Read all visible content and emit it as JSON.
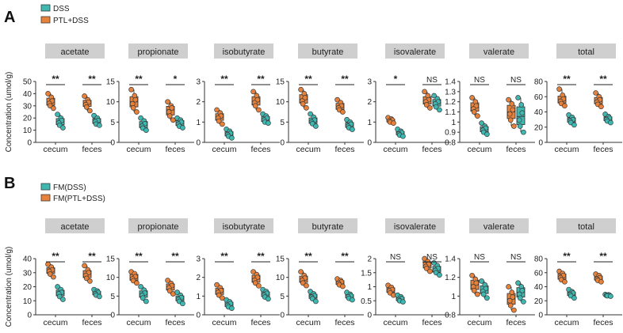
{
  "colors": {
    "dss": "#3fb8b1",
    "ptl": "#e8823a",
    "stroke": "#3a3a3a",
    "title_bg": "#cfcfcf"
  },
  "chart_data": [
    {
      "panel": "A",
      "type": "box-dot",
      "legend": [
        {
          "label": "DSS",
          "color": "#3fb8b1"
        },
        {
          "label": "PTL+DSS",
          "color": "#e8823a"
        }
      ],
      "ylabel": "Concentration (umol/g)",
      "xlabels": [
        "cecum",
        "feces"
      ],
      "subplots": [
        {
          "title": "acetate",
          "ylim": [
            0,
            50
          ],
          "ticks": [
            0,
            10,
            20,
            30,
            40,
            50
          ],
          "sig": [
            "**",
            "**"
          ],
          "series": {
            "ptl": [
              [
                40,
                37,
                34,
                32,
                30,
                28
              ],
              [
                38,
                35,
                33,
                31,
                29,
                26
              ]
            ],
            "dss": [
              [
                23,
                20,
                18,
                16,
                14,
                12
              ],
              [
                22,
                20,
                18,
                17,
                15,
                14
              ]
            ]
          }
        },
        {
          "title": "propionate",
          "ylim": [
            0,
            15
          ],
          "ticks": [
            0,
            5,
            10,
            15
          ],
          "sig": [
            "**",
            "*"
          ],
          "series": {
            "ptl": [
              [
                13,
                11.5,
                10.5,
                9.5,
                8.5,
                7.5
              ],
              [
                10,
                9,
                8.5,
                7.5,
                6.5,
                5.5
              ]
            ],
            "dss": [
              [
                6,
                5.3,
                4.6,
                4,
                3.5,
                3
              ],
              [
                6,
                5.5,
                5,
                4.5,
                4,
                3.6
              ]
            ]
          }
        },
        {
          "title": "isobutyrate",
          "ylim": [
            0,
            3
          ],
          "ticks": [
            0,
            1,
            2,
            3
          ],
          "sig": [
            "**",
            "**"
          ],
          "series": {
            "ptl": [
              [
                1.6,
                1.45,
                1.3,
                1.2,
                1.05,
                0.9
              ],
              [
                2.5,
                2.3,
                2.1,
                1.95,
                1.8,
                1.6
              ]
            ],
            "dss": [
              [
                0.65,
                0.55,
                0.45,
                0.38,
                0.3,
                0.22
              ],
              [
                1.4,
                1.3,
                1.2,
                1.1,
                1.0,
                0.95
              ]
            ]
          }
        },
        {
          "title": "butyrate",
          "ylim": [
            0,
            15
          ],
          "ticks": [
            0,
            5,
            10,
            15
          ],
          "sig": [
            "**",
            "**"
          ],
          "series": {
            "ptl": [
              [
                13,
                12,
                11,
                10.2,
                9.5,
                8.5
              ],
              [
                10.5,
                9.8,
                9,
                8.5,
                8,
                7.5
              ]
            ],
            "dss": [
              [
                7,
                6.2,
                5.5,
                5,
                4.6,
                4
              ],
              [
                5.6,
                5,
                4.5,
                4,
                3.6,
                3.2
              ]
            ]
          }
        },
        {
          "title": "isovalerate",
          "ylim": [
            0,
            3
          ],
          "ticks": [
            0,
            1,
            2,
            3
          ],
          "sig": [
            "*",
            "NS"
          ],
          "series": {
            "ptl": [
              [
                1.22,
                1.15,
                1.1,
                1.05,
                1.0,
                0.95
              ],
              [
                2.5,
                2.3,
                2.1,
                2.0,
                1.85,
                1.7
              ]
            ],
            "dss": [
              [
                0.65,
                0.55,
                0.48,
                0.42,
                0.36,
                0.3
              ],
              [
                2.3,
                2.15,
                2.0,
                1.9,
                1.75,
                1.6
              ]
            ]
          }
        },
        {
          "title": "valerate",
          "ylim": [
            0.8,
            1.4
          ],
          "ticks": [
            0.8,
            0.9,
            1.0,
            1.1,
            1.2,
            1.3,
            1.4
          ],
          "sig": [
            "NS",
            "NS"
          ],
          "series": {
            "ptl": [
              [
                1.24,
                1.2,
                1.16,
                1.13,
                1.1,
                1.06
              ],
              [
                1.22,
                1.18,
                1.12,
                1.08,
                1.02,
                0.96
              ]
            ],
            "dss": [
              [
                0.99,
                0.96,
                0.94,
                0.92,
                0.9,
                0.88
              ],
              [
                1.24,
                1.17,
                1.09,
                1.02,
                0.96,
                0.9
              ]
            ]
          }
        },
        {
          "title": "total",
          "ylim": [
            0,
            80
          ],
          "ticks": [
            0,
            20,
            40,
            60,
            80
          ],
          "sig": [
            "**",
            "**"
          ],
          "series": {
            "ptl": [
              [
                70,
                62,
                57,
                54,
                51,
                48
              ],
              [
                65,
                60,
                56,
                53,
                50,
                47
              ]
            ],
            "dss": [
              [
                36,
                33,
                30,
                28,
                26,
                23
              ],
              [
                37,
                34,
                32,
                30,
                28,
                26
              ]
            ]
          }
        }
      ]
    },
    {
      "panel": "B",
      "type": "box-dot",
      "legend": [
        {
          "label": "FM(DSS)",
          "color": "#3fb8b1"
        },
        {
          "label": "FM(PTL+DSS)",
          "color": "#e8823a"
        }
      ],
      "ylabel": "Concentration (umol/g)",
      "xlabels": [
        "cecum",
        "feces"
      ],
      "subplots": [
        {
          "title": "acetate",
          "ylim": [
            0,
            40
          ],
          "ticks": [
            0,
            10,
            20,
            30,
            40
          ],
          "sig": [
            "**",
            "**"
          ],
          "series": {
            "ptl": [
              [
                36,
                34,
                32,
                31,
                29,
                27
              ],
              [
                35,
                32,
                30,
                28,
                26,
                24
              ]
            ],
            "dss": [
              [
                20,
                18,
                16,
                15,
                13,
                11
              ],
              [
                18,
                17,
                16,
                15,
                14,
                13
              ]
            ]
          }
        },
        {
          "title": "propionate",
          "ylim": [
            0,
            15
          ],
          "ticks": [
            0,
            5,
            10,
            15
          ],
          "sig": [
            "**",
            "**"
          ],
          "series": {
            "ptl": [
              [
                11.5,
                11,
                10.2,
                9.6,
                9.1,
                8.5
              ],
              [
                9.2,
                8.4,
                7.8,
                7.2,
                6.4,
                5.6
              ]
            ],
            "dss": [
              [
                7.5,
                6.6,
                5.8,
                5.2,
                4.5,
                3.6
              ],
              [
                6,
                5.2,
                4.6,
                4.1,
                3.6,
                3
              ]
            ]
          }
        },
        {
          "title": "isobutyrate",
          "ylim": [
            0,
            3
          ],
          "ticks": [
            0,
            1,
            2,
            3
          ],
          "sig": [
            "**",
            "**"
          ],
          "series": {
            "ptl": [
              [
                1.6,
                1.45,
                1.3,
                1.2,
                1.05,
                0.9
              ],
              [
                2.3,
                2.15,
                2.0,
                1.85,
                1.7,
                1.55
              ]
            ],
            "dss": [
              [
                0.8,
                0.7,
                0.6,
                0.5,
                0.42,
                0.35
              ],
              [
                1.35,
                1.25,
                1.15,
                1.05,
                0.95,
                0.85
              ]
            ]
          }
        },
        {
          "title": "butyrate",
          "ylim": [
            0,
            15
          ],
          "ticks": [
            0,
            5,
            10,
            15
          ],
          "sig": [
            "**",
            "**"
          ],
          "series": {
            "ptl": [
              [
                11.5,
                10.5,
                9.8,
                9.2,
                8.5,
                7.8
              ],
              [
                9.6,
                9.2,
                8.8,
                8.4,
                8,
                7.6
              ]
            ],
            "dss": [
              [
                6.2,
                5.6,
                5.1,
                4.7,
                4.3,
                3.6
              ],
              [
                6,
                5.5,
                5.1,
                4.8,
                4.4,
                4
              ]
            ]
          }
        },
        {
          "title": "isovalerate",
          "ylim": [
            0,
            2
          ],
          "ticks": [
            0,
            0.5,
            1.0,
            1.5,
            2.0
          ],
          "sig": [
            "NS",
            "NS"
          ],
          "series": {
            "ptl": [
              [
                1.05,
                0.98,
                0.9,
                0.85,
                0.78,
                0.7
              ],
              [
                2.0,
                1.9,
                1.8,
                1.72,
                1.65,
                1.55
              ]
            ],
            "dss": [
              [
                0.7,
                0.64,
                0.58,
                0.54,
                0.5,
                0.46
              ],
              [
                1.85,
                1.75,
                1.65,
                1.58,
                1.5,
                1.42
              ]
            ]
          }
        },
        {
          "title": "valerate",
          "ylim": [
            0.8,
            1.4
          ],
          "ticks": [
            0.8,
            1.0,
            1.2,
            1.4
          ],
          "sig": [
            "NS",
            "NS"
          ],
          "series": {
            "ptl": [
              [
                1.22,
                1.18,
                1.14,
                1.1,
                1.06,
                1.02
              ],
              [
                1.1,
                1.04,
                0.99,
                0.95,
                0.9,
                0.85
              ]
            ],
            "dss": [
              [
                1.16,
                1.12,
                1.08,
                1.05,
                1.02,
                0.98
              ],
              [
                1.14,
                1.1,
                1.06,
                1.02,
                0.98,
                0.94
              ]
            ]
          }
        },
        {
          "title": "total",
          "ylim": [
            0,
            80
          ],
          "ticks": [
            0,
            20,
            40,
            60,
            80
          ],
          "sig": [
            "**",
            "**"
          ],
          "series": {
            "ptl": [
              [
                62,
                59,
                56,
                53,
                50,
                47
              ],
              [
                58,
                56,
                53,
                51,
                49,
                47
              ]
            ],
            "dss": [
              [
                36,
                33,
                31,
                29,
                27,
                24
              ],
              [
                29,
                28.5,
                28,
                27.5,
                27,
                26.5
              ]
            ]
          }
        }
      ]
    }
  ]
}
